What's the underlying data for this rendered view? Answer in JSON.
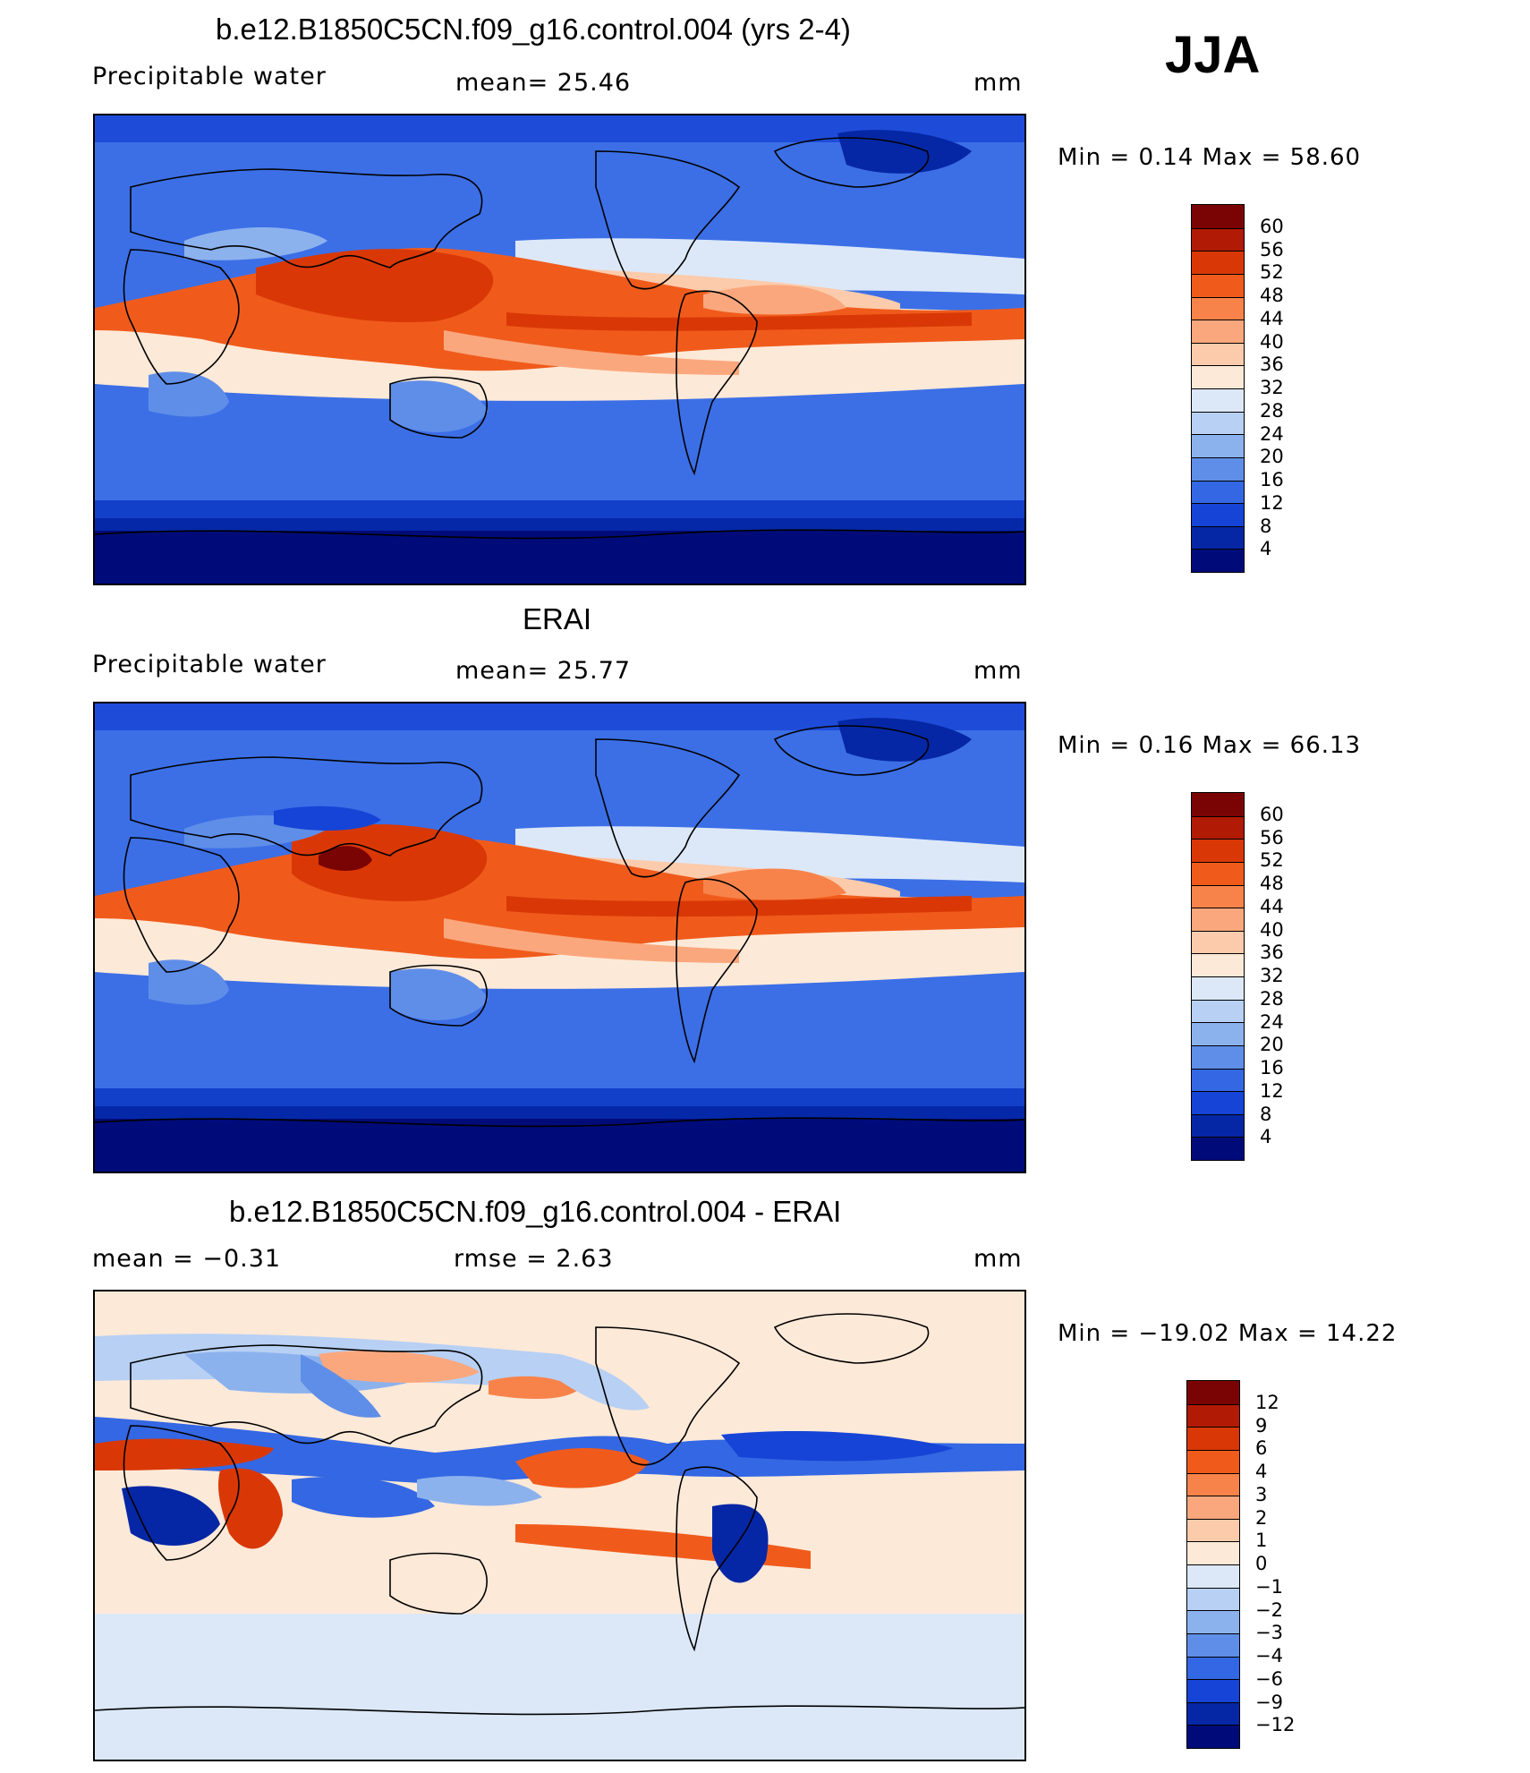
{
  "season": "JJA",
  "panels": [
    {
      "title": "b.e12.B1850C5CN.f09_g16.control.004 (yrs 2-4)",
      "variable": "Precipitable water",
      "stat1": "mean=   25.46",
      "stat2": "",
      "units": "mm",
      "minmax": "Min  =     0.14  Max  =    58.60",
      "kind": "field"
    },
    {
      "title": "ERAI",
      "variable": "Precipitable water",
      "stat1": "mean=   25.77",
      "stat2": "",
      "units": "mm",
      "minmax": "Min  =     0.16  Max  =    66.13",
      "kind": "field"
    },
    {
      "title": "b.e12.B1850C5CN.f09_g16.control.004 - ERAI",
      "variable": "mean  =    −0.31",
      "stat1": "rmse  =     2.63",
      "stat2": "",
      "units": "mm",
      "minmax": "Min  = −19.02  Max  =    14.22",
      "kind": "diff"
    }
  ],
  "colorbars": {
    "field": {
      "labels": [
        "60",
        "56",
        "52",
        "48",
        "44",
        "40",
        "36",
        "32",
        "28",
        "24",
        "20",
        "16",
        "12",
        "8",
        "4"
      ],
      "colors": [
        "#7a0403",
        "#b11a05",
        "#d93806",
        "#f05b1c",
        "#f8834a",
        "#fba77d",
        "#fccbab",
        "#fde9d8",
        "#dce8f8",
        "#b7d0f4",
        "#8cb2ee",
        "#5f8ee8",
        "#3467e3",
        "#1644d6",
        "#0527a5",
        "#000b7a"
      ]
    },
    "diff": {
      "labels": [
        "12",
        "9",
        "6",
        "4",
        "3",
        "2",
        "1",
        "0",
        "−1",
        "−2",
        "−3",
        "−4",
        "−6",
        "−9",
        "−12"
      ],
      "colors": [
        "#7a0403",
        "#b11a05",
        "#d93806",
        "#f05b1c",
        "#f8834a",
        "#fba77d",
        "#fccbab",
        "#fde9d8",
        "#dce8f8",
        "#b7d0f4",
        "#8cb2ee",
        "#5f8ee8",
        "#3467e3",
        "#1644d6",
        "#0527a5",
        "#000b7a"
      ]
    }
  }
}
